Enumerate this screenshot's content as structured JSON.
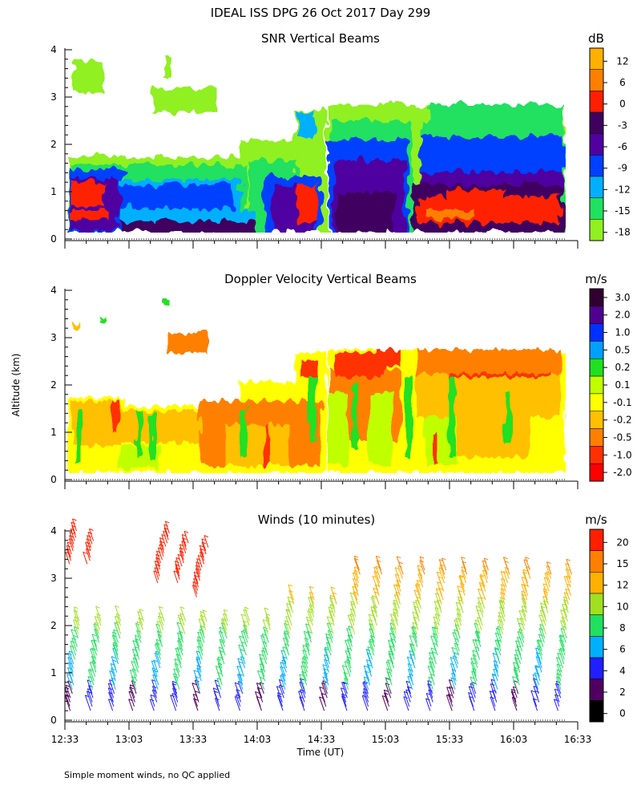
{
  "page_title": "IDEAL ISS DPG  26 Oct 2017 Day 299",
  "y_axis_label": "Altitude (km)",
  "x_axis_label": "Time (UT)",
  "footnote": "Simple moment winds, no QC applied",
  "x_ticks": [
    "12:33",
    "13:03",
    "13:33",
    "14:03",
    "14:33",
    "15:03",
    "15:33",
    "16:03",
    "16:33"
  ],
  "y_ticks": [
    "0",
    "1",
    "2",
    "3",
    "4"
  ],
  "chart_data": [
    {
      "type": "heatmap",
      "title": "SNR Vertical Beams",
      "units": "dB",
      "xlabel": "",
      "ylabel": "Altitude (km)",
      "xlim": [
        "12:33",
        "16:33"
      ],
      "ylim": [
        0,
        4
      ],
      "colorbar": {
        "ticks": [
          "12",
          "6",
          "0",
          "-3",
          "-6",
          "-9",
          "-12",
          "-15",
          "-18"
        ],
        "colors": [
          "#ffb000",
          "#ff8000",
          "#ff2000",
          "#400060",
          "#5000a0",
          "#0040ff",
          "#00b0ff",
          "#20e060",
          "#90f020"
        ]
      }
    },
    {
      "type": "heatmap",
      "title": "Doppler Velocity Vertical Beams",
      "units": "m/s",
      "xlabel": "",
      "ylabel": "Altitude (km)",
      "xlim": [
        "12:33",
        "16:33"
      ],
      "ylim": [
        0,
        4
      ],
      "colorbar": {
        "ticks": [
          "3.0",
          "2.0",
          "1.0",
          "0.5",
          "0.2",
          "0.1",
          "-0.1",
          "-0.2",
          "-0.5",
          "-1.0",
          "-2.0"
        ],
        "colors": [
          "#300030",
          "#500090",
          "#0030ff",
          "#00a0ff",
          "#20e020",
          "#c0ff00",
          "#ffff00",
          "#ffc000",
          "#ff8000",
          "#ff3000",
          "#ff0000"
        ]
      }
    },
    {
      "type": "scatter",
      "title": "Winds (10 minutes)",
      "units": "m/s",
      "xlabel": "Time (UT)",
      "ylabel": "Altitude (km)",
      "xlim": [
        "12:33",
        "16:33"
      ],
      "ylim": [
        0,
        4
      ],
      "colorbar": {
        "ticks": [
          "20",
          "15",
          "12",
          "10",
          "8",
          "6",
          "4",
          "2",
          "0"
        ],
        "colors": [
          "#ff2000",
          "#ff8000",
          "#ffb000",
          "#a0e020",
          "#20e060",
          "#00b0ff",
          "#2020ff",
          "#500060",
          "#000000"
        ]
      }
    }
  ]
}
